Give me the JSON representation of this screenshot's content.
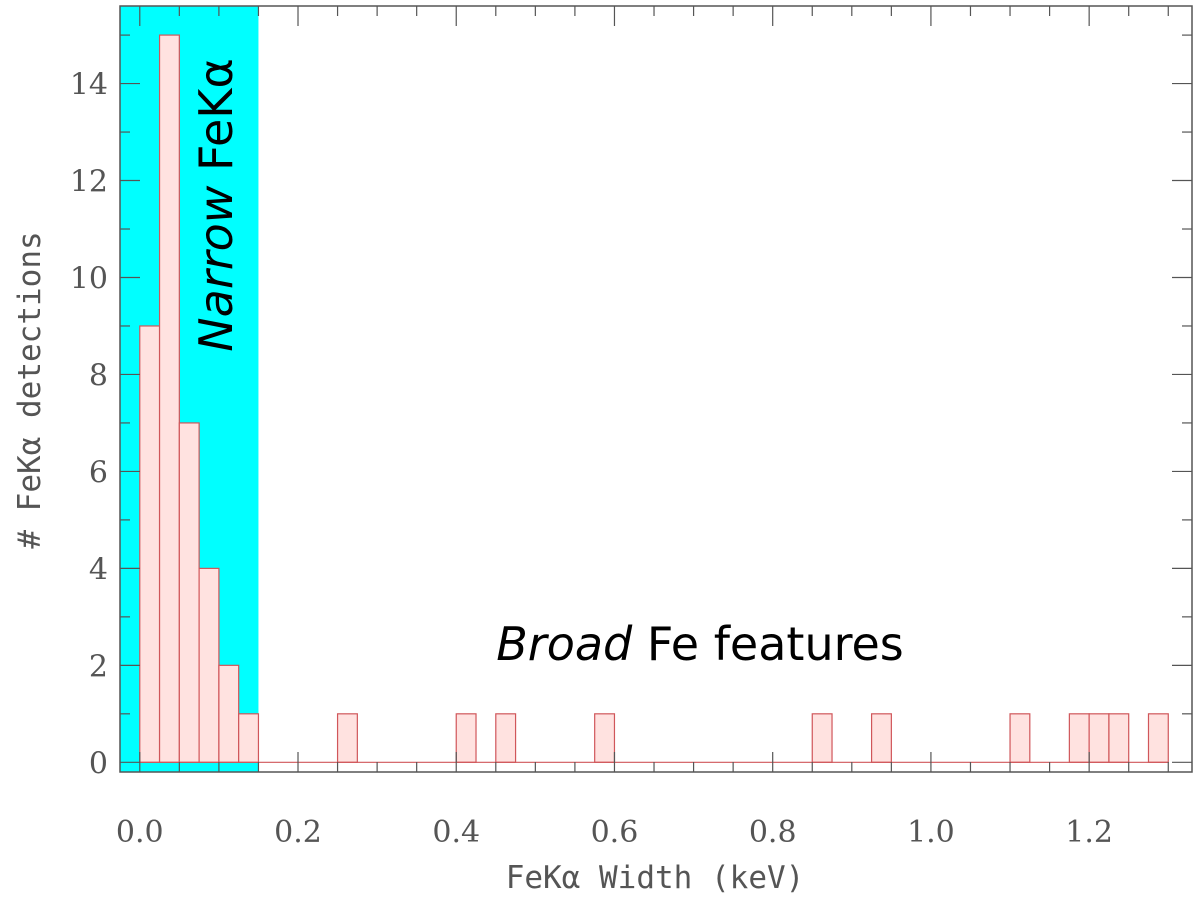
{
  "chart_data": {
    "type": "bar",
    "title": "",
    "xlabel": "FeKα Width (keV)",
    "ylabel": "# FeKα detections",
    "xlim": [
      -0.025,
      1.33
    ],
    "ylim": [
      -0.2,
      15.6
    ],
    "x_ticks": [
      "0.0",
      "0.2",
      "0.4",
      "0.6",
      "0.8",
      "1.0",
      "1.2"
    ],
    "y_ticks": [
      "0",
      "2",
      "4",
      "6",
      "8",
      "10",
      "12",
      "14"
    ],
    "x_tick_values": [
      0.0,
      0.2,
      0.4,
      0.6,
      0.8,
      1.0,
      1.2
    ],
    "y_tick_values": [
      0,
      2,
      4,
      6,
      8,
      10,
      12,
      14
    ],
    "bin_width": 0.025,
    "bins": [
      {
        "x0": 0.0,
        "count": 9
      },
      {
        "x0": 0.025,
        "count": 15
      },
      {
        "x0": 0.05,
        "count": 7
      },
      {
        "x0": 0.075,
        "count": 4
      },
      {
        "x0": 0.1,
        "count": 2
      },
      {
        "x0": 0.125,
        "count": 1
      },
      {
        "x0": 0.25,
        "count": 1
      },
      {
        "x0": 0.4,
        "count": 1
      },
      {
        "x0": 0.45,
        "count": 1
      },
      {
        "x0": 0.575,
        "count": 1
      },
      {
        "x0": 0.85,
        "count": 1
      },
      {
        "x0": 0.925,
        "count": 1
      },
      {
        "x0": 1.1,
        "count": 1
      },
      {
        "x0": 1.175,
        "count": 1
      },
      {
        "x0": 1.2,
        "count": 1
      },
      {
        "x0": 1.225,
        "count": 1
      },
      {
        "x0": 1.275,
        "count": 1
      }
    ],
    "histogram_range": [
      0.0,
      1.3
    ],
    "narrow_region": {
      "x_from": -0.025,
      "x_to": 0.15,
      "color": "#00ffff"
    },
    "annotations": {
      "narrow_italic": "Narrow",
      "narrow_rest": " FeKα",
      "broad_italic": "Broad",
      "broad_rest": " Fe features"
    },
    "colors": {
      "bar_fill": "#ffe2e0",
      "bar_stroke": "#d0565a",
      "axis": "#555555",
      "text": "#555555"
    },
    "grid": false,
    "legend": "none"
  }
}
